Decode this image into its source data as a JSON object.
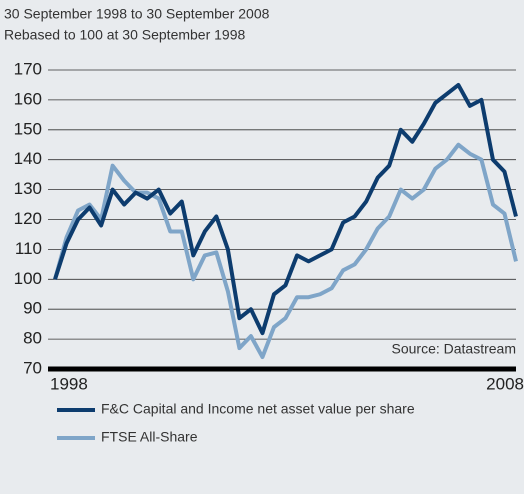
{
  "chart_data": {
    "type": "line",
    "title": "30 September 1998 to 30 September 2008",
    "subtitle": "Rebased to 100 at 30 September 1998",
    "annotation": "Source: Datastream",
    "categories": [
      "1998",
      null,
      null,
      null,
      null,
      null,
      null,
      null,
      null,
      null,
      null,
      null,
      null,
      null,
      null,
      null,
      null,
      null,
      null,
      null,
      null,
      null,
      null,
      null,
      null,
      null,
      null,
      null,
      null,
      null,
      null,
      null,
      null,
      null,
      null,
      null,
      null,
      null,
      null,
      null,
      "2008"
    ],
    "series": [
      {
        "name": "F&C Capital and Income net asset value per share",
        "color": "#0d3c6e",
        "values": [
          100,
          112,
          120,
          124,
          118,
          130,
          125,
          129,
          127,
          130,
          122,
          126,
          108,
          116,
          121,
          110,
          87,
          90,
          82,
          95,
          98,
          108,
          106,
          108,
          110,
          119,
          121,
          126,
          134,
          138,
          150,
          146,
          152,
          159,
          162,
          165,
          158,
          160,
          140,
          136,
          121
        ]
      },
      {
        "name": "FTSE All-Share",
        "color": "#7fa5c8",
        "values": [
          100,
          114,
          123,
          125,
          120,
          138,
          133,
          129,
          129,
          127,
          116,
          116,
          100,
          108,
          109,
          96,
          77,
          81,
          74,
          84,
          87,
          94,
          94,
          95,
          97,
          103,
          105,
          110,
          117,
          121,
          130,
          127,
          130,
          137,
          140,
          145,
          142,
          140,
          125,
          122,
          106
        ]
      }
    ],
    "ylim": [
      70,
      170
    ],
    "yticks": [
      70,
      80,
      90,
      100,
      110,
      120,
      130,
      140,
      150,
      160,
      170
    ],
    "grid": true,
    "legend": "bottom"
  }
}
